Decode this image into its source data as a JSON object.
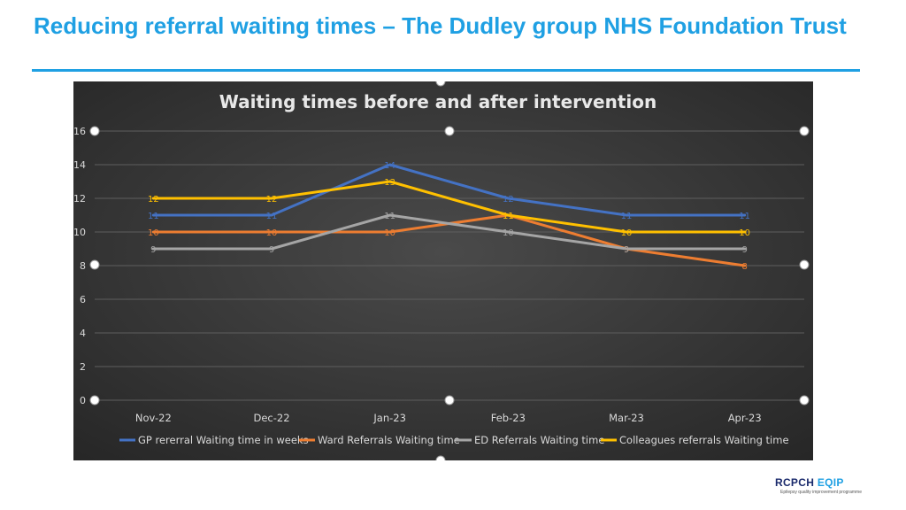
{
  "slide": {
    "title": "Reducing referral waiting times – The Dudley group NHS Foundation Trust"
  },
  "logo": {
    "brand": "RCPCH",
    "product": "EQIP",
    "tagline": "Epilepsy quality improvement programme"
  },
  "colors": {
    "title": "#1fa0e3",
    "chart_background": "#3c3c3c",
    "gp": "#4472c4",
    "ward": "#ed7d31",
    "ed": "#a5a5a5",
    "colleagues": "#ffc000"
  },
  "chart_data": {
    "type": "line",
    "title": "Waiting times before and after intervention",
    "categories": [
      "Nov-22",
      "Dec-22",
      "Jan-23",
      "Feb-23",
      "Mar-23",
      "Apr-23"
    ],
    "ylim": [
      0,
      16
    ],
    "yticks": [
      0,
      2,
      4,
      6,
      8,
      10,
      12,
      14,
      16
    ],
    "grid": true,
    "legend_position": "bottom",
    "series": [
      {
        "name": "GP rererral Waiting time in weeks",
        "color": "#4472c4",
        "values": [
          11,
          11,
          14,
          12,
          11,
          11
        ]
      },
      {
        "name": "Ward Referrals Waiting time",
        "color": "#ed7d31",
        "values": [
          10,
          10,
          10,
          11,
          9,
          8
        ]
      },
      {
        "name": "ED Referrals Waiting time",
        "color": "#a5a5a5",
        "values": [
          9,
          9,
          11,
          10,
          9,
          9
        ]
      },
      {
        "name": "Colleagues referrals Waiting time",
        "color": "#ffc000",
        "values": [
          12,
          12,
          13,
          11,
          10,
          10
        ]
      }
    ]
  }
}
